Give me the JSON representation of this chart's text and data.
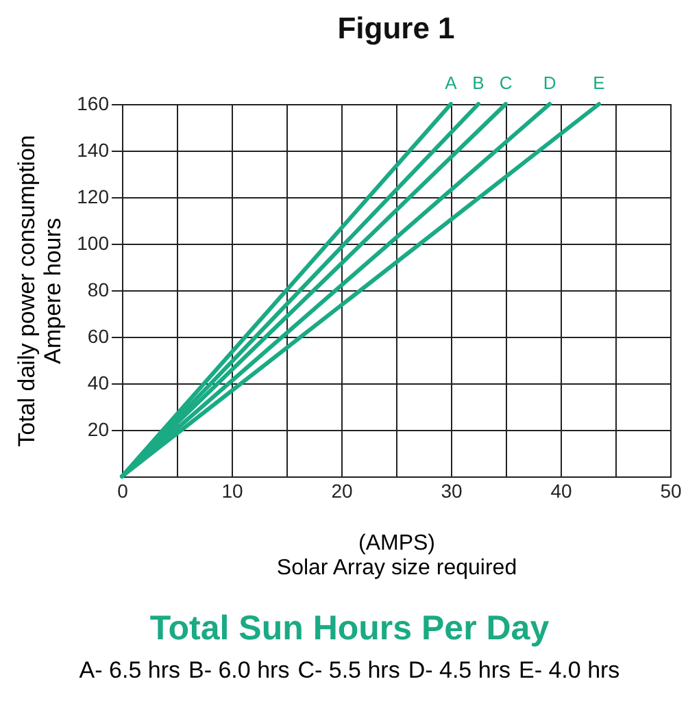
{
  "chart_data": {
    "type": "line",
    "title": "Figure 1",
    "xlabel": "(AMPS)\nSolar Array size required",
    "ylabel": "Total daily power consumption\nAmpere hours",
    "legend_title": "Total Sun Hours Per Day",
    "annotations": [
      "A- 6.5 hrs",
      "B- 6.0 hrs",
      "C- 5.5 hrs",
      "D- 4.5 hrs",
      "E- 4.0 hrs"
    ],
    "xlim": [
      0,
      50
    ],
    "ylim": [
      0,
      160
    ],
    "xticks": [
      0,
      {
        "value": 5,
        "label": null
      },
      10,
      {
        "value": 15,
        "label": null
      },
      20,
      {
        "value": 25,
        "label": null
      },
      30,
      {
        "value": 35,
        "label": null
      },
      40,
      {
        "value": 45,
        "label": null
      },
      50
    ],
    "yticks": [
      20,
      40,
      60,
      80,
      100,
      120,
      140,
      160
    ],
    "grid": true,
    "series": [
      {
        "name": "A",
        "color": "#1aaa84",
        "x": [
          0,
          30
        ],
        "values": [
          0,
          160
        ]
      },
      {
        "name": "B",
        "color": "#1aaa84",
        "x": [
          0,
          32.5
        ],
        "values": [
          0,
          160
        ]
      },
      {
        "name": "C",
        "color": "#1aaa84",
        "x": [
          0,
          35
        ],
        "values": [
          0,
          160
        ]
      },
      {
        "name": "D",
        "color": "#1aaa84",
        "x": [
          0,
          39
        ],
        "values": [
          0,
          160
        ]
      },
      {
        "name": "E",
        "color": "#1aaa84",
        "x": [
          0,
          43.5
        ],
        "values": [
          0,
          160
        ]
      }
    ]
  }
}
